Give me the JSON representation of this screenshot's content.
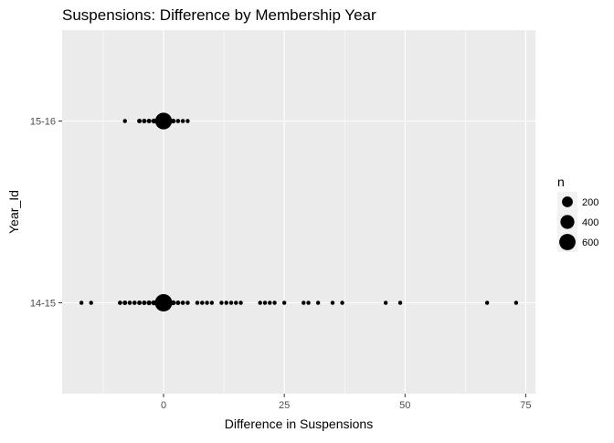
{
  "chart_data": {
    "type": "scatter",
    "title": "Suspensions: Difference by Membership Year",
    "xlabel": "Difference in Suspensions",
    "ylabel": "Year_Id",
    "xlim": [
      -21,
      77
    ],
    "x_ticks": [
      0,
      25,
      50,
      75
    ],
    "x_tick_labels": [
      "0",
      "25",
      "50",
      "75"
    ],
    "categories": [
      "14-15",
      "15-16"
    ],
    "grid": true,
    "legend": {
      "title": "n",
      "placement": "right",
      "size_range": [
        0,
        700
      ],
      "entries": [
        {
          "label": "200",
          "value": 200
        },
        {
          "label": "400",
          "value": 400
        },
        {
          "label": "600",
          "value": 600
        }
      ]
    },
    "series": [
      {
        "category": "15-16",
        "points": [
          {
            "x": -8,
            "n": 2
          },
          {
            "x": -5,
            "n": 5
          },
          {
            "x": -4,
            "n": 5
          },
          {
            "x": -3,
            "n": 6
          },
          {
            "x": -2,
            "n": 10
          },
          {
            "x": -1,
            "n": 20
          },
          {
            "x": 0,
            "n": 640
          },
          {
            "x": 1,
            "n": 15
          },
          {
            "x": 2,
            "n": 8
          },
          {
            "x": 3,
            "n": 4
          },
          {
            "x": 4,
            "n": 3
          },
          {
            "x": 5,
            "n": 2
          }
        ]
      },
      {
        "category": "14-15",
        "points": [
          {
            "x": -17,
            "n": 2
          },
          {
            "x": -15,
            "n": 2
          },
          {
            "x": -9,
            "n": 4
          },
          {
            "x": -8,
            "n": 5
          },
          {
            "x": -7,
            "n": 4
          },
          {
            "x": -6,
            "n": 4
          },
          {
            "x": -5,
            "n": 5
          },
          {
            "x": -4,
            "n": 6
          },
          {
            "x": -3,
            "n": 8
          },
          {
            "x": -2,
            "n": 12
          },
          {
            "x": -1,
            "n": 25
          },
          {
            "x": 0,
            "n": 700
          },
          {
            "x": 1,
            "n": 20
          },
          {
            "x": 2,
            "n": 10
          },
          {
            "x": 3,
            "n": 6
          },
          {
            "x": 4,
            "n": 4
          },
          {
            "x": 5,
            "n": 3
          },
          {
            "x": 7,
            "n": 3
          },
          {
            "x": 8,
            "n": 3
          },
          {
            "x": 9,
            "n": 2
          },
          {
            "x": 10,
            "n": 2
          },
          {
            "x": 12,
            "n": 2
          },
          {
            "x": 13,
            "n": 2
          },
          {
            "x": 14,
            "n": 2
          },
          {
            "x": 15,
            "n": 2
          },
          {
            "x": 16,
            "n": 2
          },
          {
            "x": 20,
            "n": 2
          },
          {
            "x": 21,
            "n": 2
          },
          {
            "x": 22,
            "n": 2
          },
          {
            "x": 23,
            "n": 2
          },
          {
            "x": 25,
            "n": 2
          },
          {
            "x": 29,
            "n": 2
          },
          {
            "x": 30,
            "n": 2
          },
          {
            "x": 32,
            "n": 2
          },
          {
            "x": 35,
            "n": 2
          },
          {
            "x": 37,
            "n": 2
          },
          {
            "x": 46,
            "n": 2
          },
          {
            "x": 49,
            "n": 2
          },
          {
            "x": 67,
            "n": 2
          },
          {
            "x": 73,
            "n": 2
          }
        ]
      }
    ]
  }
}
